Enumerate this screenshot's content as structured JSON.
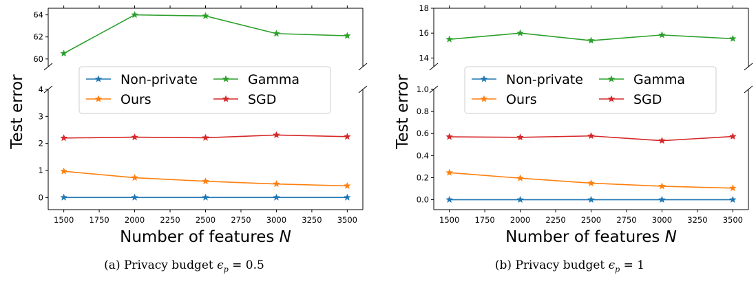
{
  "figure": {
    "captions": [
      {
        "label": "(a)",
        "text": "Privacy budget",
        "math": "ϵ",
        "sub": "p",
        "eq": "= 0.5"
      },
      {
        "label": "(b)",
        "text": "Privacy budget",
        "math": "ϵ",
        "sub": "p",
        "eq": "= 1"
      }
    ]
  },
  "chart_data": [
    {
      "type": "line",
      "ylabel": "Test error",
      "xlabel": "Number of features",
      "xlabel_var": "N",
      "x": [
        1500,
        2000,
        2500,
        3000,
        3500
      ],
      "xticks": [
        "1500",
        "1750",
        "2000",
        "2250",
        "2500",
        "2750",
        "3000",
        "3250",
        "3500"
      ],
      "broken_axis": true,
      "upper_ylim": [
        59.3,
        64.6
      ],
      "upper_yticks": [
        "60",
        "62",
        "64"
      ],
      "lower_ylim": [
        -0.45,
        4
      ],
      "lower_yticks": [
        "0",
        "1",
        "2",
        "3",
        "4"
      ],
      "legend": {
        "placement": "center",
        "entries": [
          "Non-private",
          "Ours",
          "Gamma",
          "SGD"
        ]
      },
      "series": [
        {
          "name": "Non-private",
          "color": "#1f77b4",
          "panel": "lower",
          "values": [
            0.0,
            0.0,
            0.0,
            0.0,
            0.0
          ]
        },
        {
          "name": "Ours",
          "color": "#ff7f0e",
          "panel": "lower",
          "values": [
            0.97,
            0.73,
            0.6,
            0.5,
            0.43
          ]
        },
        {
          "name": "Gamma",
          "color": "#2ca02c",
          "panel": "upper",
          "values": [
            60.5,
            64.0,
            63.9,
            62.3,
            62.1
          ]
        },
        {
          "name": "SGD",
          "color": "#d62728",
          "panel": "lower",
          "values": [
            2.2,
            2.23,
            2.21,
            2.31,
            2.25
          ]
        }
      ]
    },
    {
      "type": "line",
      "ylabel": "Test error",
      "xlabel": "Number of features",
      "xlabel_var": "N",
      "x": [
        1500,
        2000,
        2500,
        3000,
        3500
      ],
      "xticks": [
        "1500",
        "1750",
        "2000",
        "2250",
        "2500",
        "2750",
        "3000",
        "3250",
        "3500"
      ],
      "broken_axis": true,
      "upper_ylim": [
        13.3,
        18
      ],
      "upper_yticks": [
        "14",
        "16",
        "18"
      ],
      "lower_ylim": [
        -0.09,
        1.0
      ],
      "lower_yticks": [
        "0.0",
        "0.2",
        "0.4",
        "0.6",
        "0.8",
        "1.0"
      ],
      "legend": {
        "placement": "center",
        "entries": [
          "Non-private",
          "Ours",
          "Gamma",
          "SGD"
        ]
      },
      "series": [
        {
          "name": "Non-private",
          "color": "#1f77b4",
          "panel": "lower",
          "values": [
            0.0,
            0.0,
            0.0,
            0.0,
            0.0
          ]
        },
        {
          "name": "Ours",
          "color": "#ff7f0e",
          "panel": "lower",
          "values": [
            0.245,
            0.195,
            0.15,
            0.122,
            0.105
          ]
        },
        {
          "name": "Gamma",
          "color": "#2ca02c",
          "panel": "upper",
          "values": [
            15.5,
            16.0,
            15.4,
            15.85,
            15.55
          ]
        },
        {
          "name": "SGD",
          "color": "#d62728",
          "panel": "lower",
          "values": [
            0.57,
            0.565,
            0.578,
            0.535,
            0.573
          ]
        }
      ]
    }
  ]
}
